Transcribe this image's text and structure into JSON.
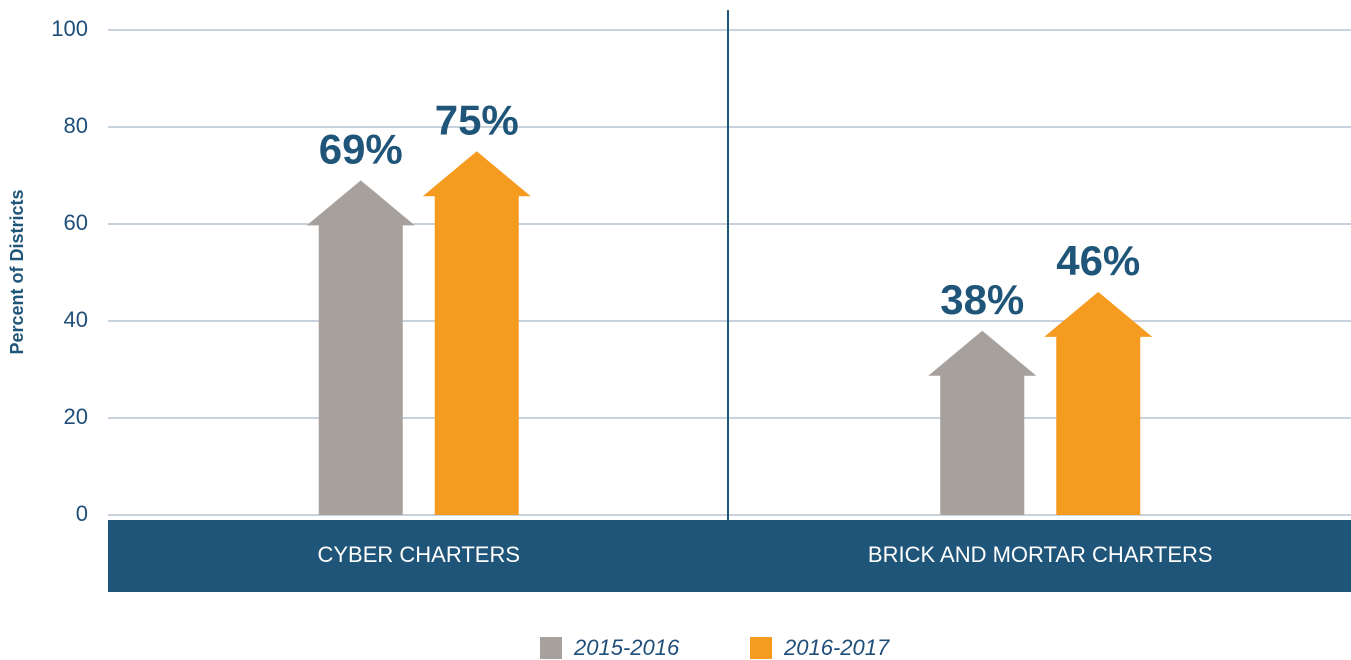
{
  "chart_data": {
    "type": "arrow_bar",
    "y_label": "Percent of Districts",
    "categories": [
      "CYBER CHARTERS",
      "BRICK AND MORTAR CHARTERS"
    ],
    "series": [
      {
        "name": "2015-2016",
        "color": "#a7a19d",
        "values": [
          69,
          38
        ],
        "value_labels": [
          "69%",
          "38%"
        ]
      },
      {
        "name": "2016-2017",
        "color": "#f59c20",
        "values": [
          75,
          46
        ],
        "value_labels": [
          "75%",
          "46%"
        ]
      }
    ],
    "ylim": [
      0,
      100
    ],
    "yticks": [
      0,
      20,
      40,
      60,
      80,
      100
    ],
    "grid": true
  }
}
